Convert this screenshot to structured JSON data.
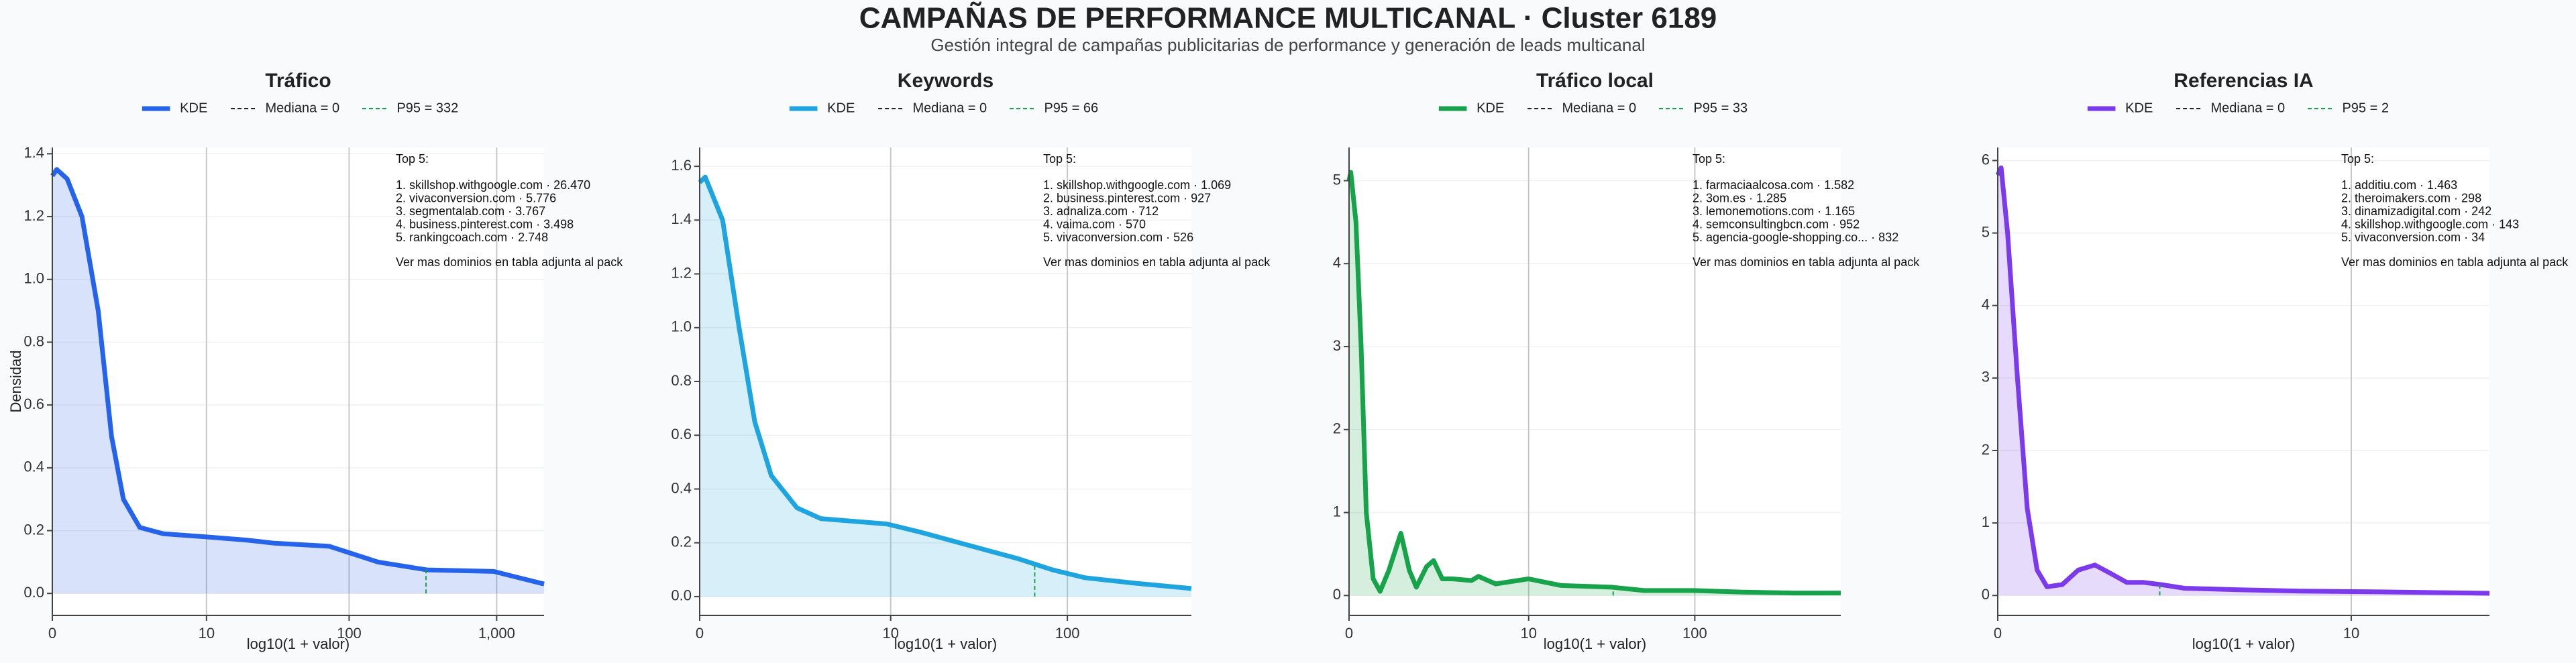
{
  "header": {
    "title": "CAMPAÑAS DE PERFORMANCE MULTICANAL · Cluster 6189",
    "subtitle": "Gestión integral de campañas publicitarias de performance y generación de leads multicanal"
  },
  "chart_data": [
    {
      "type": "line",
      "title": "Tráfico",
      "xlabel": "log10(1 + valor)",
      "ylabel": "Densidad",
      "grid": true,
      "x": [
        0,
        0.03,
        0.1,
        0.2,
        0.31,
        0.4,
        0.48,
        0.59,
        0.75,
        1.04,
        1.31,
        1.5,
        1.87,
        2.2,
        2.53,
        2.98,
        3.32
      ],
      "series": [
        {
          "name": "KDE",
          "color": "#2563eb",
          "values": [
            1.33,
            1.35,
            1.32,
            1.2,
            0.9,
            0.5,
            0.3,
            0.21,
            0.19,
            0.18,
            0.17,
            0.16,
            0.15,
            0.1,
            0.075,
            0.07,
            0.03
          ]
        }
      ],
      "reference_lines": [
        {
          "name": "Mediana = 0",
          "x": 0,
          "color": "#222222"
        },
        {
          "name": "P95 = 332",
          "x": 2.523,
          "color": "#16a34a"
        }
      ],
      "annotation": {
        "title": "Top 5:",
        "items": [
          "1. skillshop.withgoogle.com · 26.470",
          "2. vivaconversion.com · 5.776",
          "3. segmentalab.com · 3.767",
          "4. business.pinterest.com · 3.498",
          "5. rankingcoach.com · 2.748"
        ],
        "footer": "Ver mas dominios en tabla adjunta al pack"
      },
      "xlim": [
        0,
        3.32
      ],
      "ylim": [
        -0.07,
        1.42
      ],
      "xticks": [
        0,
        {
          "value": 1.041,
          "label": "10"
        },
        {
          "value": 2.004,
          "label": "100"
        },
        {
          "value": 3.0,
          "label": "1,000"
        }
      ],
      "yticks": [
        {
          "value": 0,
          "label": "0.0"
        },
        0.2,
        0.4,
        0.6,
        0.8,
        {
          "value": 1,
          "label": "1.0"
        },
        1.2,
        1.4
      ]
    },
    {
      "type": "line",
      "title": "Keywords",
      "xlabel": "log10(1 + valor)",
      "grid": true,
      "x": [
        0,
        0.03,
        0.125,
        0.215,
        0.3,
        0.39,
        0.53,
        0.66,
        0.84,
        1.02,
        1.2,
        1.47,
        1.74,
        1.92,
        2.1,
        2.37,
        2.68
      ],
      "series": [
        {
          "name": "KDE",
          "color": "#1ea5e0",
          "values": [
            1.54,
            1.56,
            1.4,
            1.0,
            0.65,
            0.45,
            0.33,
            0.29,
            0.28,
            0.27,
            0.24,
            0.19,
            0.14,
            0.1,
            0.07,
            0.05,
            0.03
          ]
        }
      ],
      "reference_lines": [
        {
          "name": "Mediana = 0",
          "x": 0,
          "color": "#222222"
        },
        {
          "name": "P95 = 66",
          "x": 1.826,
          "color": "#16a34a"
        }
      ],
      "annotation": {
        "title": "Top 5:",
        "items": [
          "1. skillshop.withgoogle.com · 1.069",
          "2. business.pinterest.com · 927",
          "3. adnaliza.com · 712",
          "4. vaima.com · 570",
          "5. vivaconversion.com · 526"
        ],
        "footer": "Ver mas dominios en tabla adjunta al pack"
      },
      "xlim": [
        0,
        2.68
      ],
      "ylim": [
        -0.07,
        1.67
      ],
      "xticks": [
        0,
        {
          "value": 1.041,
          "label": "10"
        },
        {
          "value": 2.004,
          "label": "100"
        }
      ],
      "yticks": [
        {
          "value": 0,
          "label": "0.0"
        },
        0.2,
        0.4,
        0.6,
        0.8,
        {
          "value": 1,
          "label": "1.0"
        },
        1.2,
        1.4,
        1.6
      ]
    },
    {
      "type": "line",
      "title": "Tráfico local",
      "xlabel": "log10(1 + valor)",
      "grid": true,
      "x": [
        0,
        0.01,
        0.04,
        0.07,
        0.1,
        0.14,
        0.18,
        0.23,
        0.3,
        0.35,
        0.39,
        0.45,
        0.49,
        0.54,
        0.6,
        0.71,
        0.75,
        0.85,
        1.04,
        1.23,
        1.52,
        1.71,
        2.0,
        2.28,
        2.57,
        2.85
      ],
      "series": [
        {
          "name": "KDE",
          "color": "#16a34a",
          "values": [
            5.0,
            5.1,
            4.5,
            3.0,
            1.0,
            0.2,
            0.05,
            0.3,
            0.75,
            0.3,
            0.1,
            0.35,
            0.42,
            0.2,
            0.2,
            0.18,
            0.23,
            0.14,
            0.2,
            0.12,
            0.1,
            0.06,
            0.06,
            0.04,
            0.03,
            0.03
          ]
        }
      ],
      "reference_lines": [
        {
          "name": "Mediana = 0",
          "x": 0,
          "color": "#222222"
        },
        {
          "name": "P95 = 33",
          "x": 1.531,
          "color": "#16a34a"
        }
      ],
      "annotation": {
        "title": "Top 5:",
        "items": [
          "1. farmaciaalcosa.com · 1.582",
          "2. 3om.es · 1.285",
          "3. lemonemotions.com · 1.165",
          "4. semconsultingbcn.com · 952",
          "5. agencia-google-shopping.co... · 832"
        ],
        "footer": "Ver mas dominios en tabla adjunta al pack"
      },
      "xlim": [
        0,
        2.85
      ],
      "ylim": [
        -0.24,
        5.4
      ],
      "xticks": [
        0,
        {
          "value": 1.041,
          "label": "10"
        },
        {
          "value": 2.004,
          "label": "100"
        }
      ],
      "yticks": [
        0,
        1,
        2,
        3,
        4,
        5
      ]
    },
    {
      "type": "line",
      "title": "Referencias IA",
      "xlabel": "log10(1 + valor)",
      "grid": true,
      "x": [
        0,
        0.01,
        0.029,
        0.058,
        0.087,
        0.116,
        0.145,
        0.19,
        0.237,
        0.286,
        0.334,
        0.38,
        0.43,
        0.48,
        0.55,
        0.7,
        0.89,
        1.13,
        1.448
      ],
      "series": [
        {
          "name": "KDE",
          "color": "#7c3aed",
          "values": [
            5.8,
            5.9,
            5.0,
            3.0,
            1.2,
            0.35,
            0.12,
            0.15,
            0.35,
            0.42,
            0.3,
            0.18,
            0.18,
            0.15,
            0.1,
            0.08,
            0.06,
            0.05,
            0.03
          ]
        }
      ],
      "reference_lines": [
        {
          "name": "Mediana = 0",
          "x": 0,
          "color": "#222222"
        },
        {
          "name": "P95 = 2",
          "x": 0.477,
          "color": "#16a34a"
        }
      ],
      "annotation": {
        "title": "Top 5:",
        "items": [
          "1. additiu.com · 1.463",
          "2. theroimakers.com · 298",
          "3. dinamizadigital.com · 242",
          "4. skillshop.withgoogle.com · 143",
          "5. vivaconversion.com · 34"
        ],
        "footer": "Ver mas dominios en tabla adjunta al pack"
      },
      "xlim": [
        0,
        1.448
      ],
      "ylim": [
        -0.275,
        6.18
      ],
      "xticks": [
        0,
        {
          "value": 1.041,
          "label": "10"
        }
      ],
      "yticks": [
        0,
        1,
        2,
        3,
        4,
        5,
        6
      ]
    }
  ]
}
